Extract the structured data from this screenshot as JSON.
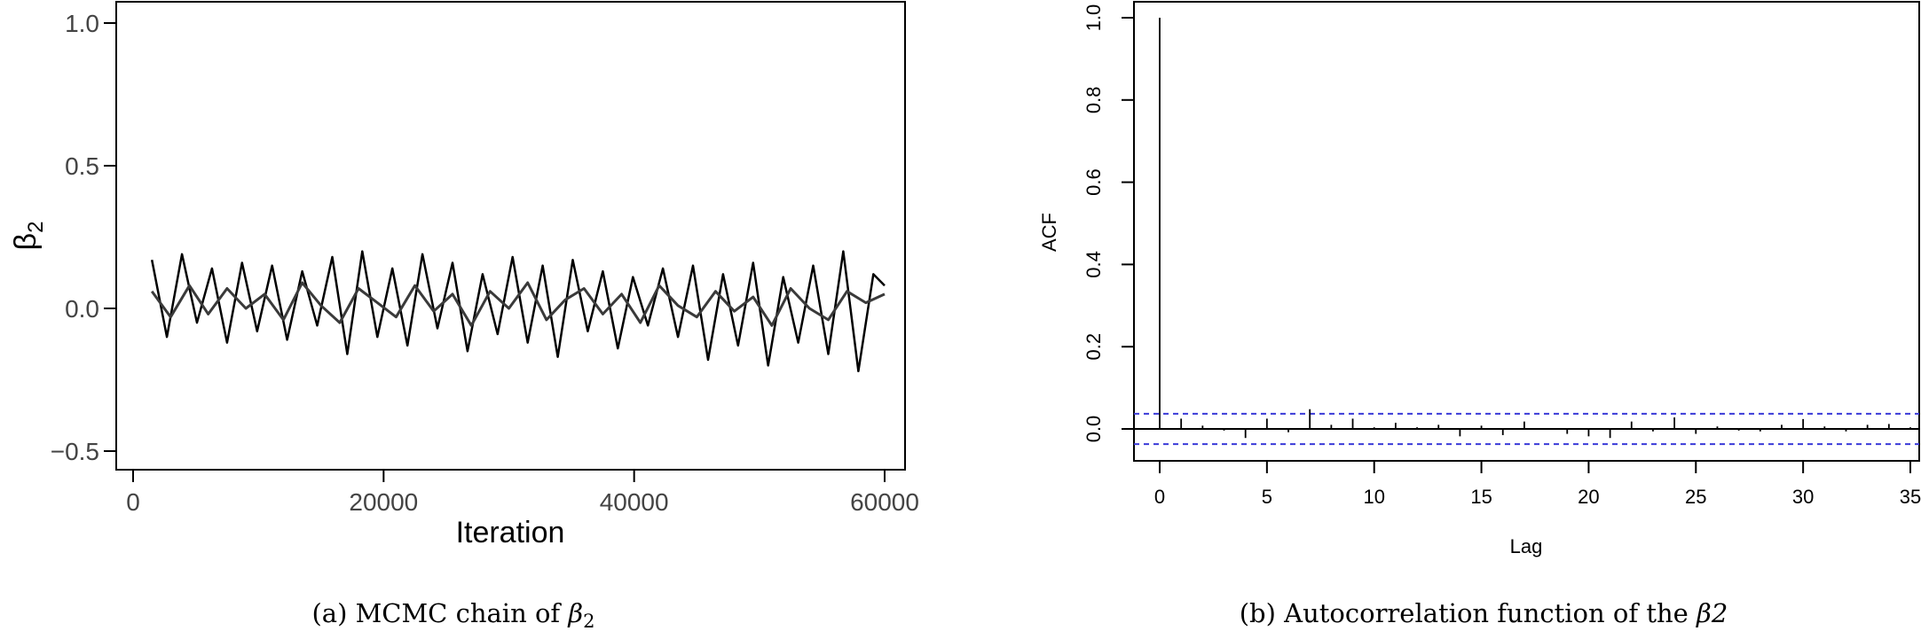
{
  "panels": {
    "a": {
      "caption_prefix": "(a) MCMC chain of ",
      "caption_symbol": "β",
      "caption_sub": "2"
    },
    "b": {
      "caption_prefix": "(b) Autocorrelation function of the ",
      "caption_symbol": "β2"
    }
  },
  "chart_data": [
    {
      "type": "line",
      "title": "",
      "xlabel": "Iteration",
      "ylabel_symbol": "β",
      "ylabel_sub": "2",
      "xlim": [
        1500,
        60000
      ],
      "ylim": [
        -0.5,
        1.0
      ],
      "x_ticks": [
        0,
        20000,
        40000,
        60000
      ],
      "x_tick_labels": [
        "0",
        "20000",
        "40000",
        "60000"
      ],
      "y_ticks": [
        -0.5,
        0.0,
        0.5,
        1.0
      ],
      "y_tick_labels": [
        "−0.5",
        "0.0",
        "0.5",
        "1.0"
      ],
      "series": [
        {
          "color": "#000000",
          "x": [
            1500,
            2700,
            3900,
            5100,
            6300,
            7500,
            8700,
            9900,
            11100,
            12300,
            13500,
            14700,
            15900,
            17100,
            18300,
            19500,
            20700,
            21900,
            23100,
            24300,
            25500,
            26700,
            27900,
            29100,
            30300,
            31500,
            32700,
            33900,
            35100,
            36300,
            37500,
            38700,
            39900,
            41100,
            42300,
            43500,
            44700,
            45900,
            47100,
            48300,
            49500,
            50700,
            51900,
            53100,
            54300,
            55500,
            56700,
            57900,
            59100,
            60000
          ],
          "values": [
            0.17,
            -0.1,
            0.19,
            -0.05,
            0.14,
            -0.12,
            0.16,
            -0.08,
            0.15,
            -0.11,
            0.13,
            -0.06,
            0.18,
            -0.16,
            0.2,
            -0.1,
            0.14,
            -0.13,
            0.19,
            -0.07,
            0.16,
            -0.15,
            0.12,
            -0.09,
            0.18,
            -0.12,
            0.15,
            -0.17,
            0.17,
            -0.08,
            0.13,
            -0.14,
            0.11,
            -0.06,
            0.14,
            -0.1,
            0.15,
            -0.18,
            0.12,
            -0.13,
            0.16,
            -0.2,
            0.11,
            -0.12,
            0.15,
            -0.16,
            0.2,
            -0.22,
            0.12,
            0.08
          ]
        },
        {
          "color": "#3a3a3a",
          "x": [
            1500,
            3000,
            4500,
            6000,
            7500,
            9000,
            10500,
            12000,
            13500,
            15000,
            16500,
            18000,
            19500,
            21000,
            22500,
            24000,
            25500,
            27000,
            28500,
            30000,
            31500,
            33000,
            34500,
            36000,
            37500,
            39000,
            40500,
            42000,
            43500,
            45000,
            46500,
            48000,
            49500,
            51000,
            52500,
            54000,
            55500,
            57000,
            58500,
            60000
          ],
          "values": [
            0.06,
            -0.03,
            0.08,
            -0.02,
            0.07,
            0.0,
            0.05,
            -0.04,
            0.09,
            0.01,
            -0.05,
            0.07,
            0.02,
            -0.03,
            0.08,
            -0.01,
            0.05,
            -0.06,
            0.06,
            0.0,
            0.09,
            -0.04,
            0.03,
            0.07,
            -0.02,
            0.05,
            -0.05,
            0.08,
            0.01,
            -0.03,
            0.06,
            -0.01,
            0.04,
            -0.06,
            0.07,
            0.0,
            -0.04,
            0.06,
            0.02,
            0.05
          ]
        }
      ]
    },
    {
      "type": "bar",
      "title": "",
      "xlabel": "Lag",
      "ylabel": "ACF",
      "xlim": [
        -1,
        35
      ],
      "ylim": [
        -0.08,
        1.0
      ],
      "x_ticks": [
        0,
        5,
        10,
        15,
        20,
        25,
        30,
        35
      ],
      "x_tick_labels": [
        "0",
        "5",
        "10",
        "15",
        "20",
        "25",
        "30",
        "35"
      ],
      "y_ticks": [
        0.0,
        0.2,
        0.4,
        0.6,
        0.8,
        1.0
      ],
      "y_tick_labels": [
        "0.0",
        "0.2",
        "0.4",
        "0.6",
        "0.8",
        "1.0"
      ],
      "confidence_band": [
        -0.037,
        0.037
      ],
      "confidence_color": "#3a3ad8",
      "lags": [
        0,
        1,
        2,
        3,
        4,
        5,
        6,
        7,
        8,
        9,
        10,
        11,
        12,
        13,
        14,
        15,
        16,
        17,
        18,
        19,
        20,
        21,
        22,
        23,
        24,
        25,
        26,
        27,
        28,
        29,
        30,
        31,
        32,
        33,
        34,
        35
      ],
      "values": [
        1.0,
        0.025,
        0.008,
        -0.004,
        -0.022,
        0.025,
        -0.008,
        0.048,
        0.01,
        0.025,
        0.004,
        0.015,
        0.004,
        0.01,
        -0.018,
        0.008,
        -0.015,
        0.018,
        0.002,
        -0.012,
        -0.018,
        -0.022,
        0.018,
        -0.006,
        0.028,
        -0.012,
        0.006,
        -0.004,
        -0.006,
        0.01,
        0.024,
        0.006,
        -0.006,
        0.01,
        0.012,
        0.004
      ]
    }
  ]
}
